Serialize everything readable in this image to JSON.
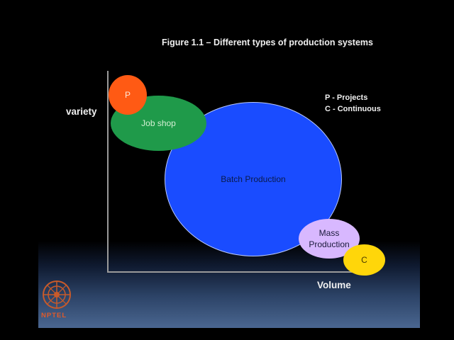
{
  "title": "Figure 1.1 – Different types of production systems",
  "axis": {
    "y_label": "variety",
    "x_label": "Volume"
  },
  "legend": {
    "line1": "P - Projects",
    "line2": "C - Continuous"
  },
  "regions": {
    "projects": "P",
    "job_shop": "Job shop",
    "batch": "Batch Production",
    "mass": "Mass Production",
    "continuous": "C"
  },
  "logo": {
    "text": "NPTEL"
  },
  "colors": {
    "projects": "#ff5a14",
    "job_shop": "#1f9a4a",
    "batch": "#1a4cff",
    "mass": "#d8b8ff",
    "continuous": "#ffd60a"
  }
}
